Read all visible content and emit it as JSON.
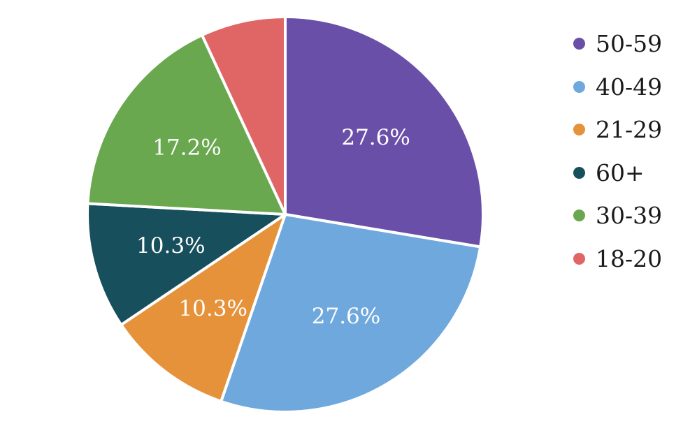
{
  "chart_data": {
    "type": "pie",
    "slices": [
      {
        "name": "50-59",
        "value": 27.6,
        "label": "27.6%",
        "color": "#6a4fa8"
      },
      {
        "name": "40-49",
        "value": 27.6,
        "label": "27.6%",
        "color": "#6fa8dc"
      },
      {
        "name": "21-29",
        "value": 10.3,
        "label": "10.3%",
        "color": "#e6923a"
      },
      {
        "name": "60+",
        "value": 10.3,
        "label": "10.3%",
        "color": "#174f5c"
      },
      {
        "name": "30-39",
        "value": 17.2,
        "label": "17.2%",
        "color": "#6aa84f"
      },
      {
        "name": "18-20",
        "value": 6.9,
        "label": "",
        "color": "#e06666"
      }
    ],
    "legend_position": "right",
    "start_angle": "top",
    "direction": "clockwise"
  }
}
